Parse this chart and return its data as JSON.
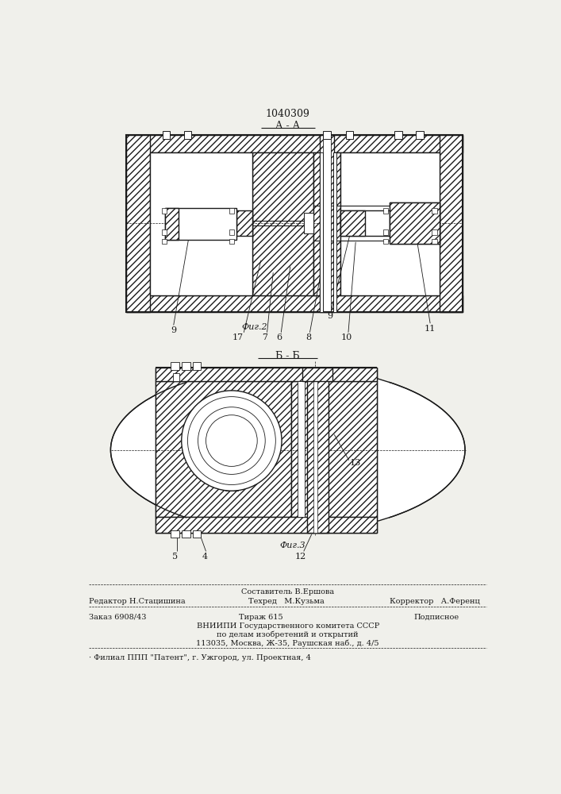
{
  "patent_number": "1040309",
  "fig2_label": "А - А",
  "fig3_label": "Б - Б",
  "fig2_caption": "Фиг.2",
  "fig3_caption": "Фиг.3",
  "bg_color": "#f0f0eb",
  "line_color": "#1a1a1a",
  "footer": {
    "line1_center": "Составитель В.Ершова",
    "line2_left": "Редактор Н.Стацишина",
    "line2_mid": "Техред   М.Кузьма",
    "line2_right": "Корректор   А.Ференц",
    "line3_left": "Заказ 6908/43",
    "line3_mid": "Тираж 615",
    "line3_right": "Подписное",
    "line4": "ВНИИПИ Государственного комитета СССР",
    "line5": "по делам изобретений и открытий",
    "line6": "113035, Москва, Ж-35, Раушская наб., д. 4/5",
    "line7": "· Филиал ППП \"Патент\", г. Ужгород, ул. Проектная, 4"
  }
}
